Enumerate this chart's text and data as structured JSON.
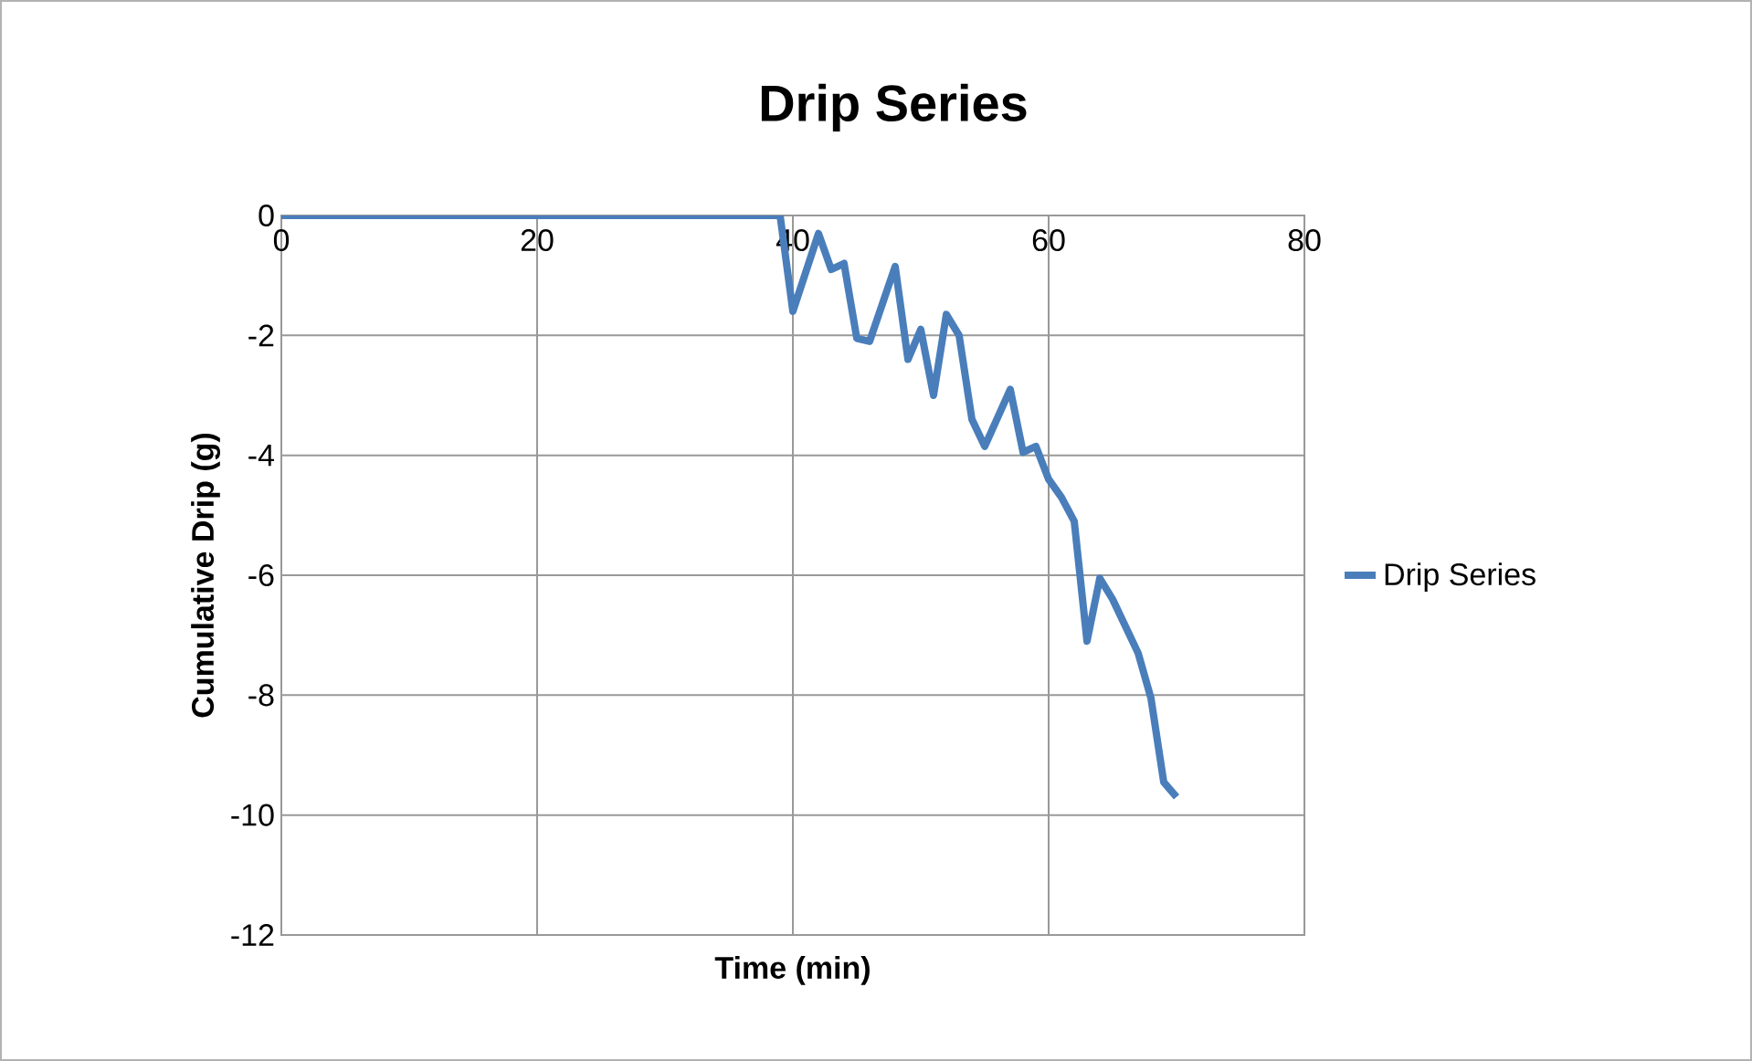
{
  "chart_data": {
    "type": "line",
    "title": "Drip Series",
    "xlabel": "Time (min)",
    "ylabel": "Cumulative Drip (g)",
    "series": [
      {
        "name": "Drip Series",
        "color": "#4a7ebb",
        "x": [
          0,
          39,
          40,
          42,
          43,
          44,
          45,
          46,
          48,
          49,
          50,
          51,
          52,
          53,
          54,
          55,
          57,
          58,
          59,
          60,
          61,
          62,
          63,
          64,
          65,
          67,
          68,
          69,
          70
        ],
        "values": [
          0,
          0,
          -1.6,
          -0.3,
          -0.9,
          -0.8,
          -2.05,
          -2.1,
          -0.85,
          -2.4,
          -1.9,
          -3.0,
          -1.65,
          -2.0,
          -3.4,
          -3.85,
          -2.9,
          -3.95,
          -3.85,
          -4.4,
          -4.7,
          -5.1,
          -7.1,
          -6.05,
          -6.4,
          -7.3,
          -8.05,
          -9.45,
          -9.7
        ]
      }
    ],
    "xlim": [
      0,
      80
    ],
    "xticks": [
      0,
      20,
      40,
      60,
      80
    ],
    "ylim": [
      -12,
      0
    ],
    "yticks": [
      -12,
      -10,
      -8,
      -6,
      -4,
      -2,
      0
    ],
    "grid": true,
    "legend": "right",
    "marker": "none",
    "line_style": "solid"
  }
}
